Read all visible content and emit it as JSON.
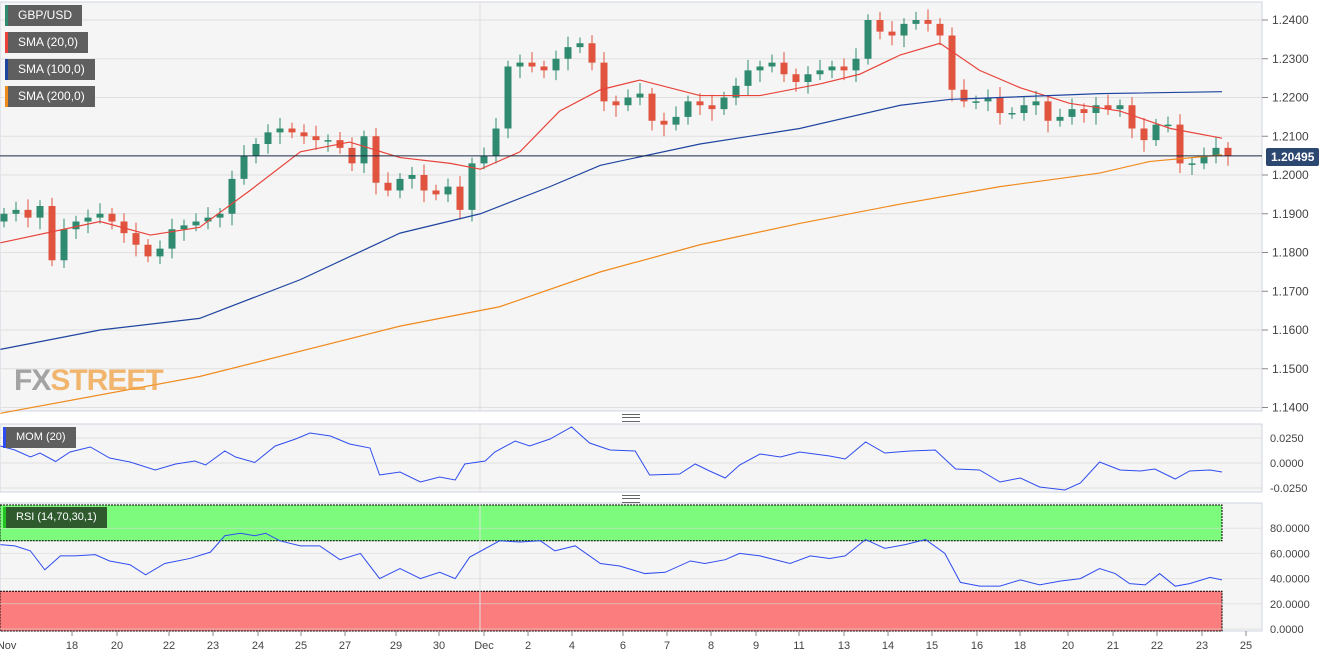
{
  "legend": {
    "symbol": "GBP/USD",
    "sma20": "SMA (20,0)",
    "sma100": "SMA (100,0)",
    "sma200": "SMA (200,0)",
    "mom": "MOM (20)",
    "rsi": "RSI (14,70,30,1)"
  },
  "watermark": {
    "a": "FX",
    "b": "STREET"
  },
  "colors": {
    "up": "#2f8a6f",
    "down": "#e0533f",
    "sma20": "#e8433a",
    "sma100": "#1f45a0",
    "sma200": "#f08a1c",
    "mom": "#2f4cf0",
    "rsi": "#2f4cf0",
    "overbought": "#7dfb7d",
    "oversold": "#fb7d7d",
    "price_tag": "#2c4770"
  },
  "chart_data": [
    {
      "type": "candlestick",
      "title": "GBP/USD",
      "current_price": "1.20495",
      "ylim": [
        1.136,
        1.245
      ],
      "yticks": [
        "1.1400",
        "1.1500",
        "1.1600",
        "1.1700",
        "1.1800",
        "1.1900",
        "1.2000",
        "1.2100",
        "1.2200",
        "1.2300",
        "1.2400"
      ],
      "closes": [
        1.19,
        1.191,
        1.189,
        1.192,
        1.178,
        1.186,
        1.188,
        1.189,
        1.19,
        1.188,
        1.185,
        1.182,
        1.179,
        1.181,
        1.186,
        1.187,
        1.188,
        1.189,
        1.19,
        1.199,
        1.205,
        1.208,
        1.211,
        1.212,
        1.211,
        1.21,
        1.209,
        1.209,
        1.207,
        1.203,
        1.21,
        1.198,
        1.196,
        1.199,
        1.2,
        1.196,
        1.195,
        1.197,
        1.191,
        1.203,
        1.205,
        1.212,
        1.228,
        1.229,
        1.228,
        1.227,
        1.23,
        1.233,
        1.234,
        1.229,
        1.219,
        1.218,
        1.22,
        1.221,
        1.214,
        1.213,
        1.215,
        1.219,
        1.218,
        1.217,
        1.22,
        1.223,
        1.227,
        1.228,
        1.229,
        1.226,
        1.224,
        1.226,
        1.227,
        1.228,
        1.227,
        1.23,
        1.24,
        1.237,
        1.236,
        1.239,
        1.24,
        1.239,
        1.236,
        1.222,
        1.219,
        1.219,
        1.22,
        1.216,
        1.216,
        1.218,
        1.219,
        1.214,
        1.215,
        1.217,
        1.216,
        1.218,
        1.217,
        1.218,
        1.212,
        1.209,
        1.213,
        1.213,
        1.203,
        1.203,
        1.205,
        1.207,
        1.2049
      ],
      "first_open": 1.188,
      "sma": [
        {
          "name": "SMA (20,0)",
          "points": [
            [
              -0.3,
              1.1825
            ],
            [
              8,
              1.188
            ],
            [
              12.2,
              1.1845
            ],
            [
              16.3,
              1.1865
            ],
            [
              20.5,
              1.196
            ],
            [
              24.7,
              1.206
            ],
            [
              28.8,
              1.2085
            ],
            [
              33,
              1.2045
            ],
            [
              37.2,
              1.203
            ],
            [
              39.7,
              1.2015
            ],
            [
              43,
              1.206
            ],
            [
              46.3,
              1.2165
            ],
            [
              49.7,
              1.222
            ],
            [
              53,
              1.2245
            ],
            [
              58,
              1.2205
            ],
            [
              63,
              1.2205
            ],
            [
              68,
              1.2235
            ],
            [
              71.3,
              1.226
            ],
            [
              74.7,
              1.231
            ],
            [
              78,
              1.234
            ],
            [
              81.3,
              1.227
            ],
            [
              84.7,
              1.2225
            ],
            [
              88.8,
              1.2185
            ],
            [
              93,
              1.2165
            ],
            [
              97.2,
              1.212
            ],
            [
              101.5,
              1.2095
            ]
          ]
        },
        {
          "name": "SMA (100,0)",
          "points": [
            [
              -0.3,
              1.155
            ],
            [
              8,
              1.16
            ],
            [
              16.3,
              1.163
            ],
            [
              24.7,
              1.173
            ],
            [
              33,
              1.185
            ],
            [
              39.7,
              1.19
            ],
            [
              45.5,
              1.197
            ],
            [
              49.7,
              1.2025
            ],
            [
              58,
              1.208
            ],
            [
              66.3,
              1.212
            ],
            [
              74.7,
              1.218
            ],
            [
              78.8,
              1.2195
            ],
            [
              83,
              1.22
            ],
            [
              91.3,
              1.221
            ],
            [
              101.5,
              1.2215
            ]
          ]
        },
        {
          "name": "SMA (200,0)",
          "points": [
            [
              -0.3,
              1.1385
            ],
            [
              16.3,
              1.148
            ],
            [
              33,
              1.161
            ],
            [
              41.3,
              1.166
            ],
            [
              49.7,
              1.175
            ],
            [
              58,
              1.182
            ],
            [
              66.3,
              1.1875
            ],
            [
              74.7,
              1.1925
            ],
            [
              83,
              1.197
            ],
            [
              91.3,
              1.2005
            ],
            [
              95.5,
              1.2035
            ],
            [
              101.5,
              1.2052
            ]
          ]
        }
      ]
    },
    {
      "type": "line",
      "title": "MOM (20)",
      "ylim": [
        -0.03,
        0.04
      ],
      "yticks": [
        "0.0250",
        "0.0000",
        "-0.0250"
      ],
      "points": [
        [
          -0.3,
          0.017
        ],
        [
          0.9,
          0.013
        ],
        [
          2.2,
          0.006
        ],
        [
          3,
          0.01
        ],
        [
          4.3,
          0.0015
        ],
        [
          5.5,
          0.011
        ],
        [
          7.2,
          0.016
        ],
        [
          8.8,
          0.005
        ],
        [
          10.5,
          0.001
        ],
        [
          12.6,
          -0.007
        ],
        [
          14.3,
          -0.001
        ],
        [
          15.9,
          0.002
        ],
        [
          16.8,
          -0.002
        ],
        [
          18.4,
          0.012
        ],
        [
          19.3,
          0.006
        ],
        [
          20.9,
          0.0005
        ],
        [
          22.6,
          0.017
        ],
        [
          24.3,
          0.024
        ],
        [
          25.5,
          0.03
        ],
        [
          27.2,
          0.027
        ],
        [
          28.8,
          0.019
        ],
        [
          30.5,
          0.015
        ],
        [
          31.3,
          -0.012
        ],
        [
          33,
          -0.009
        ],
        [
          34.7,
          -0.019
        ],
        [
          36.3,
          -0.014
        ],
        [
          37.6,
          -0.017
        ],
        [
          38.4,
          -0.001
        ],
        [
          40.1,
          0.002
        ],
        [
          40.9,
          0.011
        ],
        [
          42.6,
          0.022
        ],
        [
          43.8,
          0.017
        ],
        [
          45.5,
          0.024
        ],
        [
          47.3,
          0.036
        ],
        [
          48.8,
          0.02
        ],
        [
          50.5,
          0.013
        ],
        [
          52.6,
          0.012
        ],
        [
          53.8,
          -0.012
        ],
        [
          56.3,
          -0.011
        ],
        [
          57.6,
          -0.001
        ],
        [
          58.8,
          -0.008
        ],
        [
          60.1,
          -0.015
        ],
        [
          61.3,
          -0.002
        ],
        [
          63,
          0.009
        ],
        [
          64.7,
          0.006
        ],
        [
          66.3,
          0.011
        ],
        [
          68.8,
          0.007
        ],
        [
          70.1,
          0.004
        ],
        [
          71.8,
          0.021
        ],
        [
          73.4,
          0.01
        ],
        [
          75.5,
          0.012
        ],
        [
          77.6,
          0.013
        ],
        [
          79.3,
          -0.006
        ],
        [
          81.3,
          -0.007
        ],
        [
          83,
          -0.019
        ],
        [
          84.7,
          -0.015
        ],
        [
          86.3,
          -0.024
        ],
        [
          88.4,
          -0.027
        ],
        [
          89.7,
          -0.02
        ],
        [
          91.3,
          0.001
        ],
        [
          93,
          -0.007
        ],
        [
          94.7,
          -0.008
        ],
        [
          95.9,
          -0.006
        ],
        [
          97.6,
          -0.016
        ],
        [
          98.8,
          -0.008
        ],
        [
          100.5,
          -0.007
        ],
        [
          101.5,
          -0.009
        ]
      ]
    },
    {
      "type": "line",
      "title": "RSI (14,70,30,1)",
      "ylim": [
        0,
        100
      ],
      "overbought": 70,
      "oversold": 30,
      "yticks": [
        "80.0000",
        "60.0000",
        "40.0000",
        "20.0000",
        "0.0000"
      ],
      "points": [
        [
          -0.3,
          67
        ],
        [
          0.9,
          66
        ],
        [
          2.2,
          62
        ],
        [
          3.4,
          47
        ],
        [
          4.7,
          58
        ],
        [
          5.9,
          58
        ],
        [
          7.6,
          59
        ],
        [
          8.8,
          54
        ],
        [
          10.5,
          51
        ],
        [
          11.8,
          43
        ],
        [
          13.4,
          52
        ],
        [
          15.5,
          56
        ],
        [
          17.2,
          61
        ],
        [
          18.4,
          74
        ],
        [
          19.7,
          76
        ],
        [
          20.9,
          74
        ],
        [
          21.8,
          76
        ],
        [
          23,
          70
        ],
        [
          24.7,
          66
        ],
        [
          26.3,
          66
        ],
        [
          28,
          55
        ],
        [
          29.7,
          60
        ],
        [
          31.3,
          40
        ],
        [
          33,
          48
        ],
        [
          34.7,
          40
        ],
        [
          36.3,
          45
        ],
        [
          37.6,
          40
        ],
        [
          38.8,
          57
        ],
        [
          41.3,
          70
        ],
        [
          43,
          69
        ],
        [
          44.7,
          70
        ],
        [
          45.9,
          62
        ],
        [
          47.6,
          66
        ],
        [
          49.7,
          52
        ],
        [
          51.3,
          50
        ],
        [
          53.4,
          44
        ],
        [
          55.1,
          45
        ],
        [
          57.2,
          54
        ],
        [
          58.4,
          52
        ],
        [
          60.1,
          55
        ],
        [
          61.3,
          60
        ],
        [
          63,
          58
        ],
        [
          65.5,
          52
        ],
        [
          67.2,
          58
        ],
        [
          68.8,
          56
        ],
        [
          70.1,
          58
        ],
        [
          71.8,
          71
        ],
        [
          73.4,
          64
        ],
        [
          75.1,
          67
        ],
        [
          76.8,
          71
        ],
        [
          78.4,
          60
        ],
        [
          79.7,
          37
        ],
        [
          81.3,
          34
        ],
        [
          83,
          34
        ],
        [
          84.7,
          39
        ],
        [
          86.3,
          35
        ],
        [
          88,
          38
        ],
        [
          89.7,
          40
        ],
        [
          91.3,
          48
        ],
        [
          92.6,
          44
        ],
        [
          93.8,
          36
        ],
        [
          95.1,
          35
        ],
        [
          96.3,
          44
        ],
        [
          97.6,
          34
        ],
        [
          98.8,
          36
        ],
        [
          100.5,
          41
        ],
        [
          101.5,
          39
        ]
      ]
    }
  ],
  "x_axis": {
    "ticks": [
      [
        "Nov",
        -0.6
      ],
      [
        "18",
        5.67
      ],
      [
        "20",
        9.42
      ],
      [
        "22",
        13.75
      ],
      [
        "23",
        17.42
      ],
      [
        "24",
        21.17
      ],
      [
        "25",
        24.75
      ],
      [
        "27",
        28.42
      ],
      [
        "29",
        32.67
      ],
      [
        "30",
        36.25
      ],
      [
        "Dec",
        40
      ],
      [
        "2",
        43.67
      ],
      [
        "4",
        47.33
      ],
      [
        "6",
        51.58
      ],
      [
        "7",
        55.25
      ],
      [
        "8",
        58.92
      ],
      [
        "9",
        62.67
      ],
      [
        "11",
        66.25
      ],
      [
        "13",
        70
      ],
      [
        "14",
        73.67
      ],
      [
        "15",
        77.33
      ],
      [
        "16",
        81.08
      ],
      [
        "18",
        84.67
      ],
      [
        "20",
        88.67
      ],
      [
        "21",
        92.42
      ],
      [
        "22",
        96.08
      ],
      [
        "23",
        99.83
      ],
      [
        "25",
        103.5
      ]
    ]
  }
}
